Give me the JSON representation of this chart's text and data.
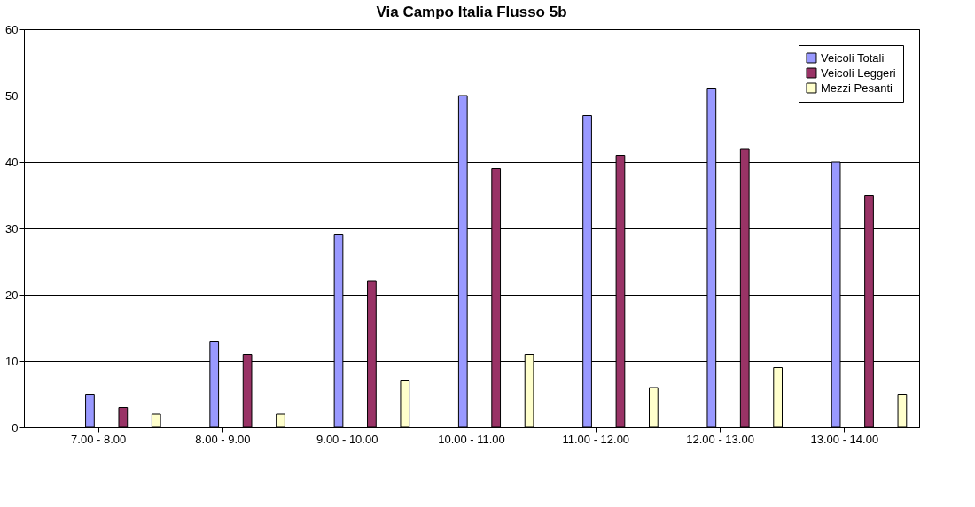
{
  "chart_data": {
    "type": "bar",
    "title": "Via Campo Italia  Flusso 5b",
    "categories": [
      "7.00 - 8.00",
      "8.00 - 9.00",
      "9.00 - 10.00",
      "10.00 - 11.00",
      "11.00 - 12.00",
      "12.00 - 13.00",
      "13.00 - 14.00"
    ],
    "series": [
      {
        "name": "Veicoli Totali",
        "color": "#9999ff",
        "values": [
          5,
          13,
          29,
          50,
          47,
          51,
          40
        ]
      },
      {
        "name": "Veicoli Leggeri",
        "color": "#993366",
        "values": [
          3,
          11,
          22,
          39,
          41,
          42,
          35
        ]
      },
      {
        "name": "Mezzi Pesanti",
        "color": "#ffffcc",
        "values": [
          2,
          2,
          7,
          11,
          6,
          9,
          5
        ]
      }
    ],
    "ylim": [
      0,
      60
    ],
    "yticks": [
      0,
      10,
      20,
      30,
      40,
      50,
      60
    ],
    "grid": "y",
    "legend": "top right"
  }
}
